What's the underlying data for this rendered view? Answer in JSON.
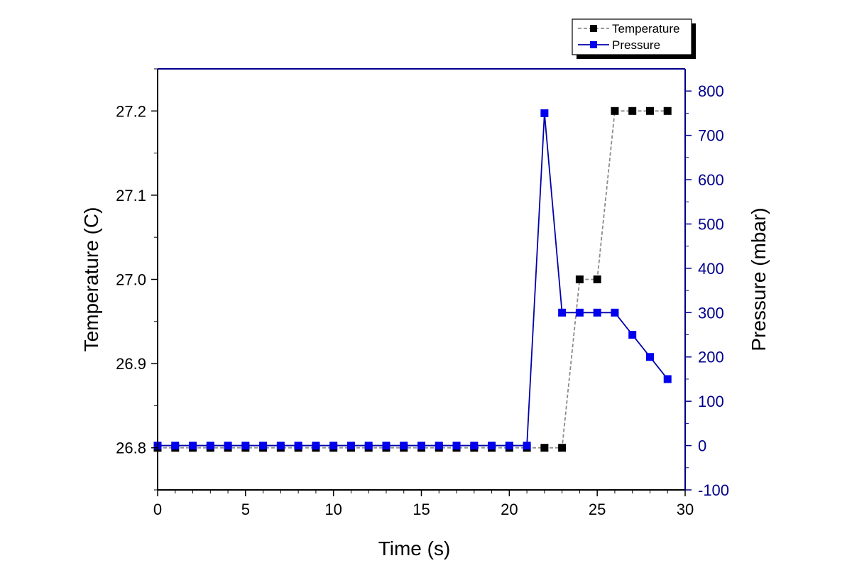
{
  "colors": {
    "temperature": "#000000",
    "temperature_line": "#8c8c8c",
    "pressure": "#0000ee",
    "pressure_line": "#0000aa",
    "right_axis": "#00008b"
  },
  "chart_data": {
    "type": "line",
    "xlabel": "Time (s)",
    "ylabel": "Temperature (C)",
    "y2label": "Pressure (mbar)",
    "xlim": [
      0,
      30
    ],
    "ylim": [
      26.75,
      27.25
    ],
    "y2lim": [
      -100,
      850
    ],
    "x_ticks": [
      "0",
      "5",
      "10",
      "15",
      "20",
      "25",
      "30"
    ],
    "y_ticks": [
      "26.8",
      "26.9",
      "27.0",
      "27.1",
      "27.2"
    ],
    "y2_ticks": [
      "-100",
      "0",
      "100",
      "200",
      "300",
      "400",
      "500",
      "600",
      "700",
      "800"
    ],
    "legend_position": "top-right, outside plot",
    "grid": false,
    "series": [
      {
        "name": "Temperature",
        "axis": "left",
        "line_style": "dashed",
        "x": [
          0,
          1,
          2,
          3,
          4,
          5,
          6,
          7,
          8,
          9,
          10,
          11,
          12,
          13,
          14,
          15,
          16,
          17,
          18,
          19,
          20,
          21,
          22,
          23,
          24,
          25,
          26,
          27,
          28,
          29
        ],
        "y": [
          26.8,
          26.8,
          26.8,
          26.8,
          26.8,
          26.8,
          26.8,
          26.8,
          26.8,
          26.8,
          26.8,
          26.8,
          26.8,
          26.8,
          26.8,
          26.8,
          26.8,
          26.8,
          26.8,
          26.8,
          26.8,
          26.8,
          26.8,
          26.8,
          27.0,
          27.0,
          27.2,
          27.2,
          27.2,
          27.2
        ]
      },
      {
        "name": "Pressure",
        "axis": "right",
        "line_style": "solid",
        "x": [
          0,
          1,
          2,
          3,
          4,
          5,
          6,
          7,
          8,
          9,
          10,
          11,
          12,
          13,
          14,
          15,
          16,
          17,
          18,
          19,
          20,
          21,
          22,
          23,
          24,
          25,
          26,
          27,
          28,
          29
        ],
        "y": [
          0,
          0,
          0,
          0,
          0,
          0,
          0,
          0,
          0,
          0,
          0,
          0,
          0,
          0,
          0,
          0,
          0,
          0,
          0,
          0,
          0,
          0,
          750,
          300,
          300,
          300,
          300,
          250,
          200,
          150
        ]
      }
    ]
  }
}
